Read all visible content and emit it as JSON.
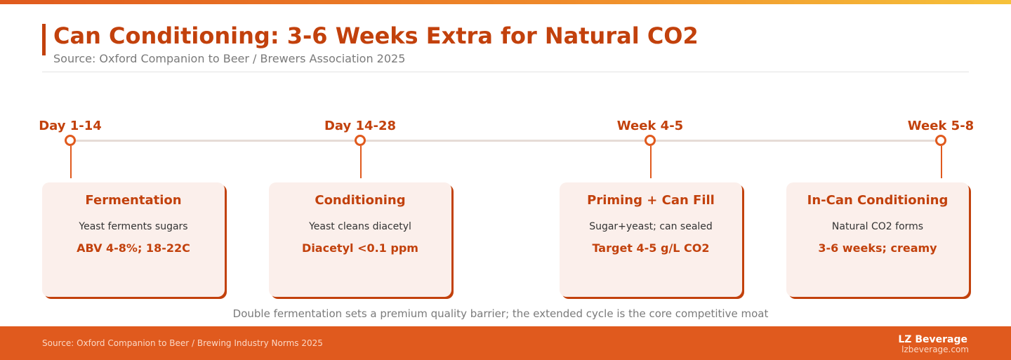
{
  "header": {
    "title": "Can Conditioning: 3-6 Weeks Extra for Natural CO2",
    "subtitle": "Source: Oxford Companion to Beer / Brewers Association 2025"
  },
  "stages": [
    {
      "label": "Day 1-14",
      "title": "Fermentation",
      "desc": "Yeast ferments sugars",
      "metric": "ABV 4-8%; 18-22C"
    },
    {
      "label": "Day 14-28",
      "title": "Conditioning",
      "desc": "Yeast cleans diacetyl",
      "metric": "Diacetyl <0.1 ppm"
    },
    {
      "label": "Week 4-5",
      "title": "Priming + Can Fill",
      "desc": "Sugar+yeast; can sealed",
      "metric": "Target 4-5 g/L CO2"
    },
    {
      "label": "Week 5-8",
      "title": "In-Can Conditioning",
      "desc": "Natural CO2 forms",
      "metric": "3-6 weeks; creamy"
    }
  ],
  "caption": "Double fermentation sets a premium quality barrier; the extended cycle is the core competitive moat",
  "footer": {
    "source": "Source: Oxford Companion to Beer / Brewing Industry Norms 2025",
    "brand": "LZ Beverage",
    "url": "lzbeverage.com"
  },
  "colors": {
    "accent": "#c2410c",
    "accent_bright": "#e05a1e",
    "card_bg": "#fbefeb",
    "muted_text": "#7a7a7a"
  }
}
